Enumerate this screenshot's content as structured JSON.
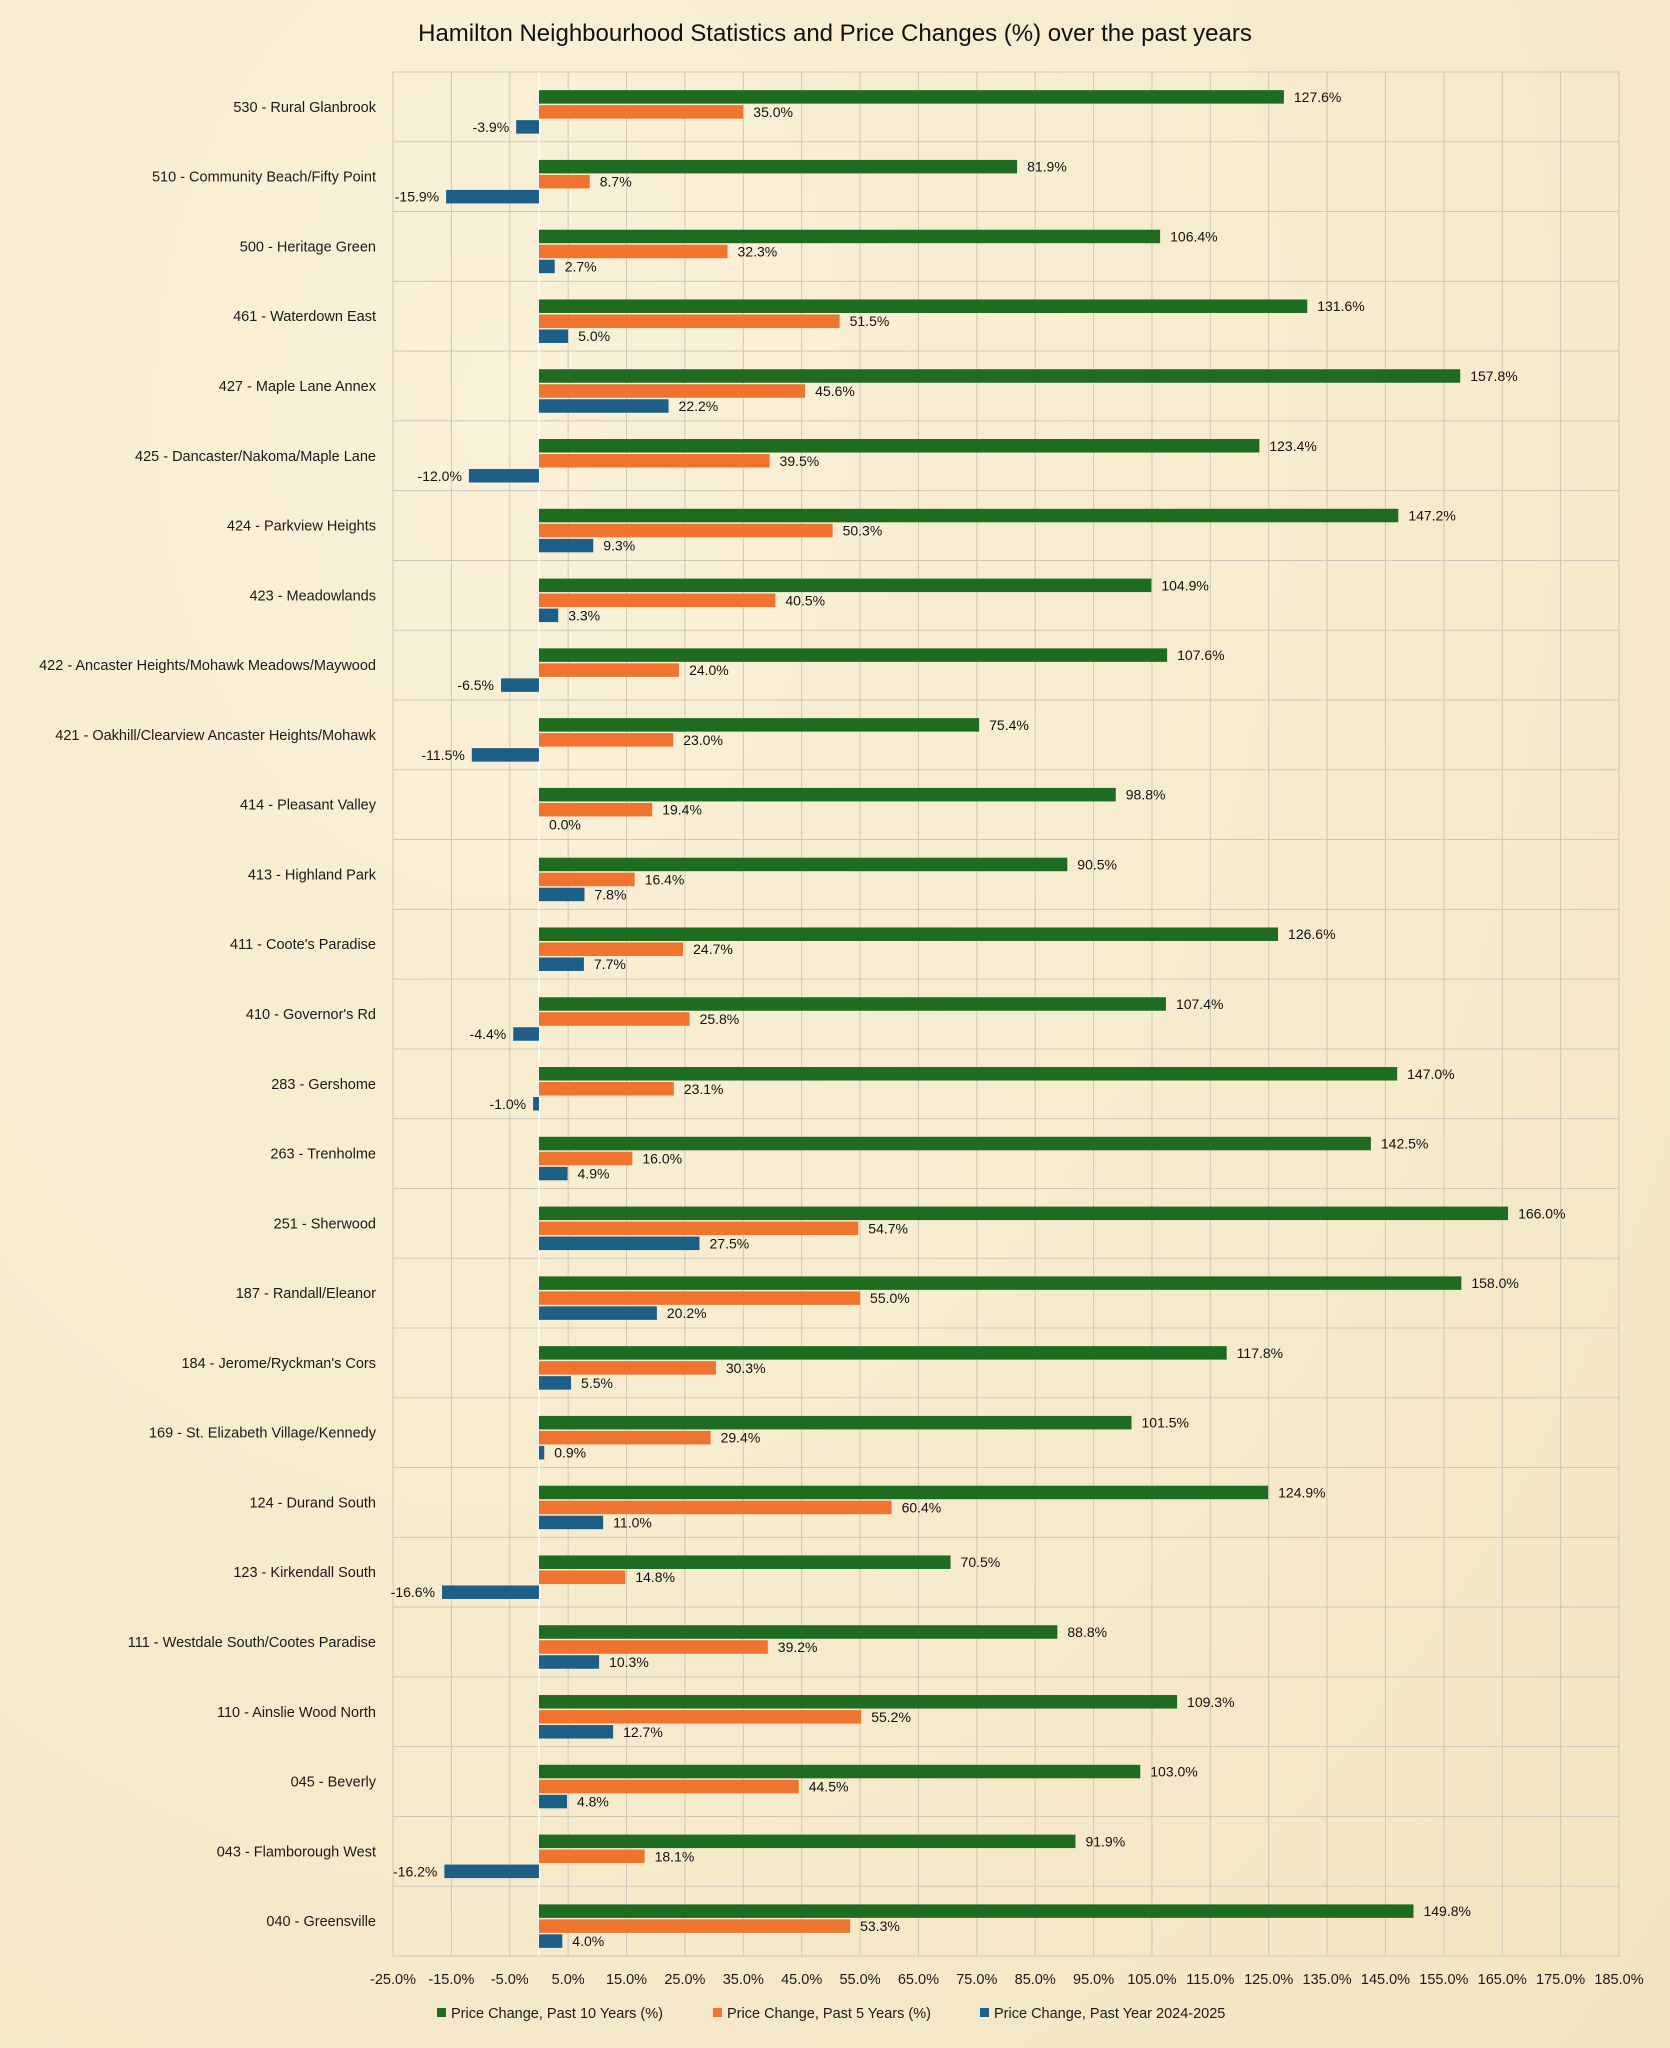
{
  "chart_data": {
    "type": "bar",
    "orientation": "horizontal",
    "title": "Hamilton Neighbourhood Statistics and Price Changes (%) over the past years",
    "xlabel": "",
    "ylabel": "",
    "xlim": [
      -25,
      185
    ],
    "x_ticks": [
      -25,
      -15,
      -5,
      5,
      15,
      25,
      35,
      45,
      55,
      65,
      75,
      85,
      95,
      105,
      115,
      125,
      135,
      145,
      155,
      165,
      175,
      185
    ],
    "grid": true,
    "legend_position": "bottom",
    "value_suffix": "%",
    "categories": [
      "530 - Rural Glanbrook",
      "510 - Community Beach/Fifty Point",
      "500 - Heritage Green",
      "461 - Waterdown East",
      "427 - Maple Lane Annex",
      "425 - Dancaster/Nakoma/Maple Lane",
      "424 - Parkview Heights",
      "423 - Meadowlands",
      "422 - Ancaster Heights/Mohawk Meadows/Maywood",
      "421 - Oakhill/Clearview Ancaster Heights/Mohawk",
      "414 - Pleasant Valley",
      "413 - Highland Park",
      "411 - Coote's Paradise",
      "410 - Governor's Rd",
      "283 - Gershome",
      "263 - Trenholme",
      "251 - Sherwood",
      "187 - Randall/Eleanor",
      "184 - Jerome/Ryckman's Cors",
      "169 - St. Elizabeth Village/Kennedy",
      "124 - Durand South",
      "123 - Kirkendall South",
      "111 - Westdale South/Cootes Paradise",
      "110 - Ainslie Wood North",
      "045 - Beverly",
      "043 - Flamborough West",
      "040 - Greensville"
    ],
    "series": [
      {
        "name": "Price Change, Past 10 Years (%)",
        "color": "#1f6b20",
        "values": [
          127.6,
          81.9,
          106.4,
          131.6,
          157.8,
          123.4,
          147.2,
          104.9,
          107.6,
          75.4,
          98.8,
          90.5,
          126.6,
          107.4,
          147.0,
          142.5,
          166.0,
          158.0,
          117.8,
          101.5,
          124.9,
          70.5,
          88.8,
          109.3,
          103.0,
          91.9,
          149.8
        ]
      },
      {
        "name": "Price Change, Past 5 Years (%)",
        "color": "#ee7430",
        "values": [
          35.0,
          8.7,
          32.3,
          51.5,
          45.6,
          39.5,
          50.3,
          40.5,
          24.0,
          23.0,
          19.4,
          16.4,
          24.7,
          25.8,
          23.1,
          16.0,
          54.7,
          55.0,
          30.3,
          29.4,
          60.4,
          14.8,
          39.2,
          55.2,
          44.5,
          18.1,
          53.3
        ]
      },
      {
        "name": "Price Change, Past Year 2024-2025",
        "color": "#1d5f86",
        "values": [
          -3.9,
          -15.9,
          2.7,
          5.0,
          22.2,
          -12.0,
          9.3,
          3.3,
          -6.5,
          -11.5,
          0.0,
          7.8,
          7.7,
          -4.4,
          -1.0,
          4.9,
          27.5,
          20.2,
          5.5,
          0.9,
          11.0,
          -16.6,
          10.3,
          12.7,
          4.8,
          -16.2,
          4.0
        ]
      }
    ]
  }
}
